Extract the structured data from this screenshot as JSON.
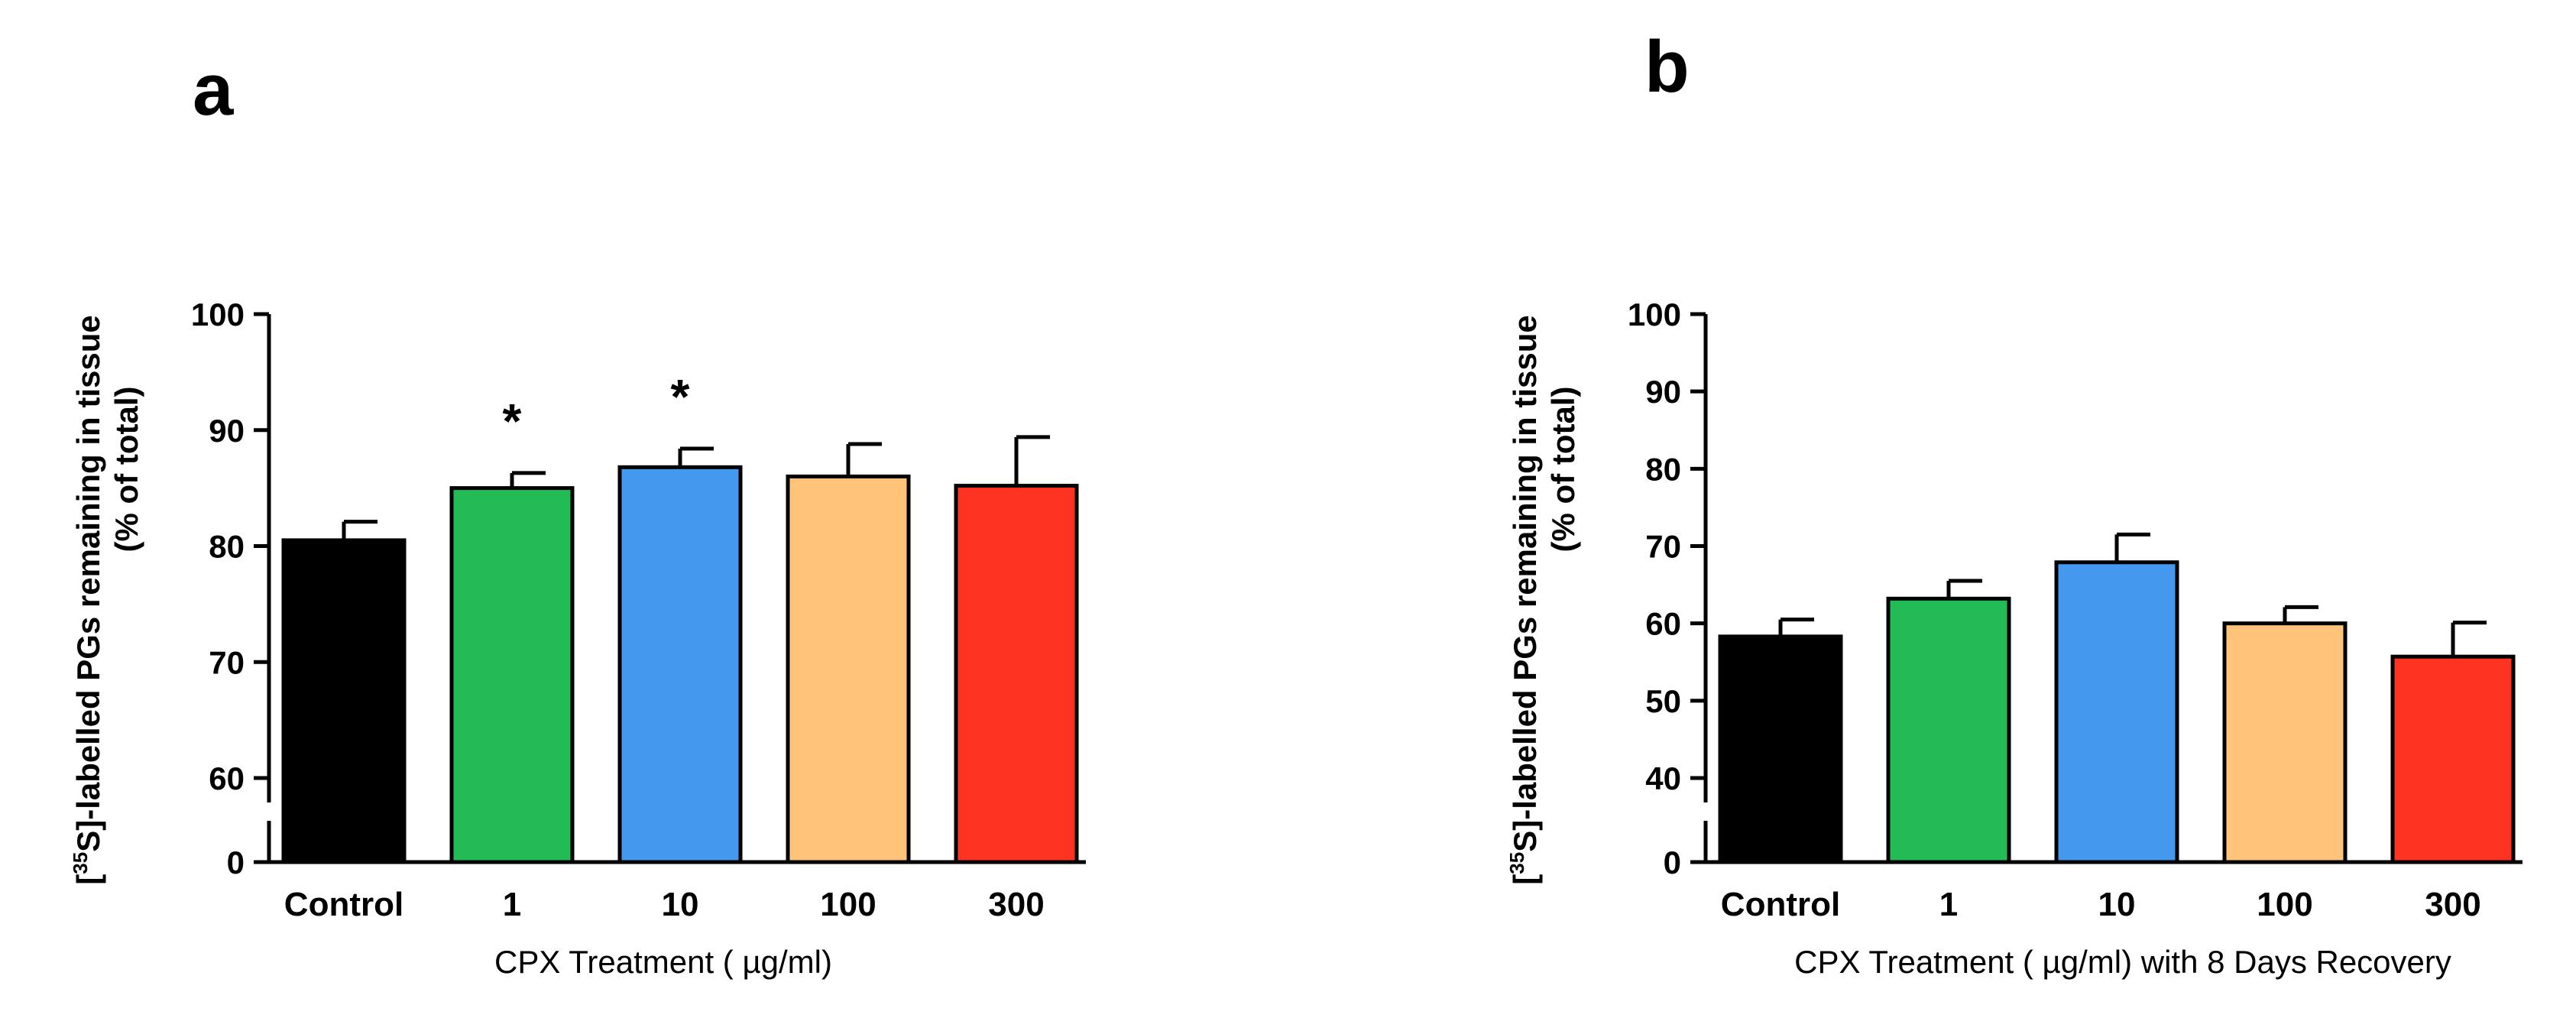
{
  "chart_data": [
    {
      "panel": "a",
      "type": "bar",
      "categories": [
        "Control",
        "1",
        "10",
        "100",
        "300"
      ],
      "values": [
        80.5,
        85.0,
        86.8,
        86.0,
        85.2
      ],
      "errors": [
        1.6,
        1.3,
        1.6,
        2.8,
        4.2
      ],
      "colors": [
        "#000000",
        "#22bb55",
        "#4499ee",
        "#ffc47a",
        "#ff3322"
      ],
      "significance": [
        "",
        "*",
        "*",
        "",
        ""
      ],
      "xlabel": "CPX Treatment ( µg/ml)",
      "ylabel_prefix": "[",
      "ylabel_sup": "35",
      "ylabel_main": "S]-labelled PGs remaining in tissue",
      "ylabel_line2": "(% of total)",
      "ylim": [
        60,
        100
      ],
      "yticks": [
        "60",
        "70",
        "80",
        "90",
        "100"
      ],
      "broken_axis_zero": "0"
    },
    {
      "panel": "b",
      "type": "bar",
      "categories": [
        "Control",
        "1",
        "10",
        "100",
        "300"
      ],
      "values": [
        58.3,
        63.2,
        67.9,
        60.0,
        55.7
      ],
      "errors": [
        2.2,
        2.3,
        3.6,
        2.1,
        4.4
      ],
      "colors": [
        "#000000",
        "#22bb55",
        "#4499ee",
        "#ffc47a",
        "#ff3322"
      ],
      "significance": [
        "",
        "",
        "",
        "",
        ""
      ],
      "xlabel": "CPX Treatment ( µg/ml) with 8 Days Recovery",
      "ylabel_prefix": "[",
      "ylabel_sup": "35",
      "ylabel_main": "S]-labelled PGs remaining in tissue",
      "ylabel_line2": "(% of total)",
      "ylim": [
        40,
        100
      ],
      "yticks": [
        "40",
        "50",
        "60",
        "70",
        "80",
        "90",
        "100"
      ],
      "broken_axis_zero": "0"
    }
  ]
}
